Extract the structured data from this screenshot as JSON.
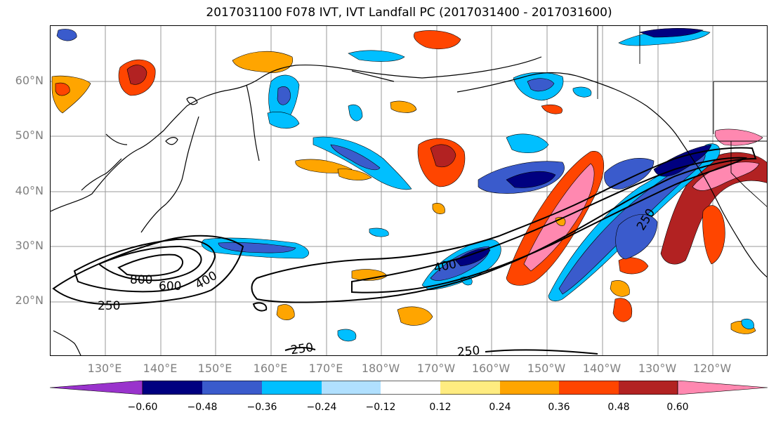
{
  "title": "2017031100 F078 IVT, IVT Landfall PC (2017031400 - 2017031600)",
  "map": {
    "lat_labels": [
      "60°N",
      "50°N",
      "40°N",
      "30°N",
      "20°N"
    ],
    "lon_labels": [
      "130°E",
      "140°E",
      "150°E",
      "160°E",
      "170°E",
      "180°W",
      "170°W",
      "160°W",
      "150°W",
      "140°W",
      "130°W",
      "120°W"
    ],
    "contour_labels": [
      "800",
      "600",
      "400",
      "250",
      "400",
      "250",
      "250",
      "250"
    ]
  },
  "colorbar": {
    "colors": [
      "#9933cc",
      "#000080",
      "#3a5bcc",
      "#00bfff",
      "#b0e0ff",
      "#ffffff",
      "#ffec80",
      "#ffa500",
      "#ff4500",
      "#b22222",
      "#ff88b0"
    ],
    "ticks": [
      "−0.60",
      "−0.48",
      "−0.36",
      "−0.24",
      "−0.12",
      "0.12",
      "0.24",
      "0.36",
      "0.48",
      "0.60"
    ]
  }
}
